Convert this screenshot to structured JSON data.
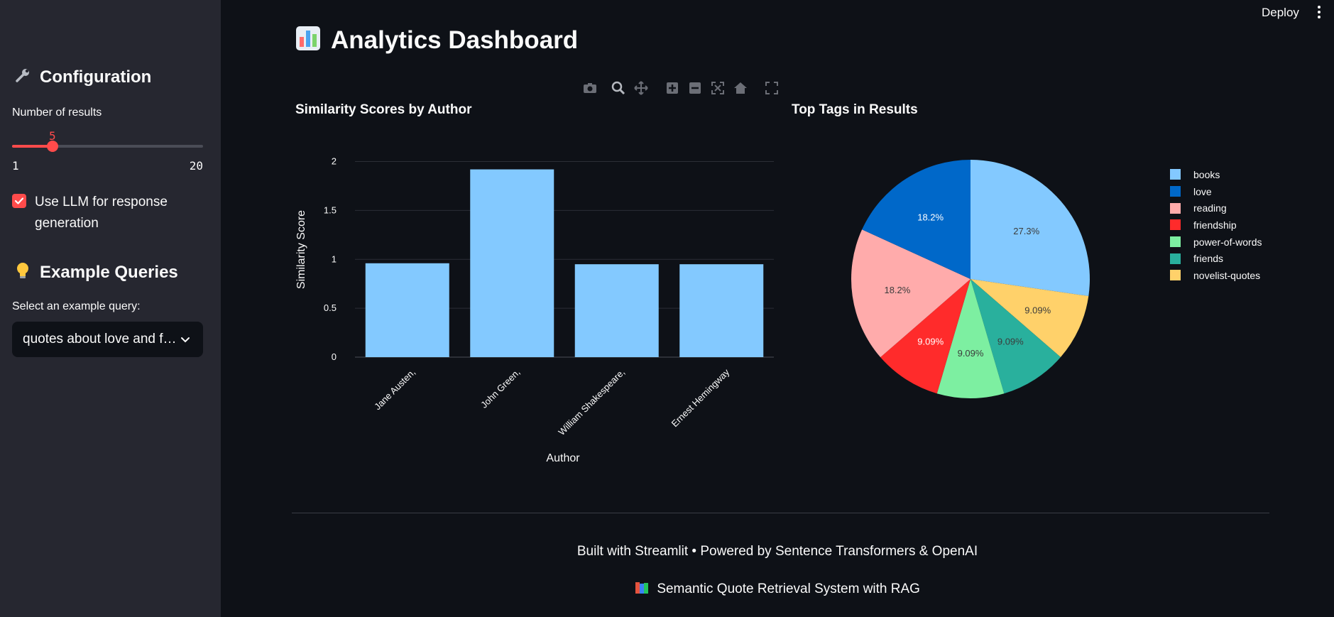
{
  "header": {
    "deploy_label": "Deploy"
  },
  "sidebar": {
    "configuration_title": "Configuration",
    "configuration_icon": "wrench-icon",
    "results_label": "Number of results",
    "results_value": "5",
    "results_min": "1",
    "results_max": "20",
    "llm_checkbox_label": "Use LLM for response generation",
    "llm_checked": true,
    "example_title": "Example Queries",
    "example_icon": "lightbulb-icon",
    "example_select_label": "Select an example query:",
    "example_select_value": "quotes about love and friendship"
  },
  "main": {
    "title": "Analytics Dashboard",
    "title_icon": "bar-chart-icon",
    "bar_chart_title": "Similarity Scores by Author",
    "pie_chart_title": "Top Tags in Results"
  },
  "footer": {
    "built_with": "Built with Streamlit • Powered by Sentence Transformers & OpenAI",
    "system_name": "Semantic Quote Retrieval System with RAG"
  },
  "colors": {
    "accent": "#ff4b4b",
    "bar": "#83c9ff"
  },
  "chart_data": [
    {
      "type": "bar",
      "title": "Similarity Scores by Author",
      "xlabel": "Author",
      "ylabel": "Similarity Score",
      "categories": [
        "Jane Austen,",
        "John Green,",
        "William Shakespeare,",
        "Ernest Hemingway"
      ],
      "values": [
        0.96,
        1.92,
        0.95,
        0.95
      ],
      "ylim": [
        0,
        2.2
      ],
      "yticks": [
        0,
        0.5,
        1,
        1.5,
        2
      ],
      "ytick_labels": [
        "0",
        "0.5",
        "1",
        "1.5",
        "2"
      ],
      "grid": true
    },
    {
      "type": "pie",
      "title": "Top Tags in Results",
      "labels": [
        "books",
        "novelist-quotes",
        "friends",
        "power-of-words",
        "friendship",
        "reading",
        "love"
      ],
      "values": [
        27.3,
        9.09,
        9.09,
        9.09,
        9.09,
        18.2,
        18.2
      ],
      "value_labels": [
        "27.3%",
        "9.09%",
        "9.09%",
        "9.09%",
        "9.09%",
        "18.2%",
        "18.2%"
      ],
      "colors": [
        "#83c9ff",
        "#ffd16a",
        "#29b09d",
        "#7defa1",
        "#ff2b2b",
        "#ffabab",
        "#0068c9"
      ],
      "label_colors": [
        "#3b3b3b",
        "#3b3b3b",
        "#3b3b3b",
        "#3b3b3b",
        "#ffffff",
        "#3b3b3b",
        "#ffffff"
      ],
      "legend": [
        "books",
        "love",
        "reading",
        "friendship",
        "power-of-words",
        "friends",
        "novelist-quotes"
      ],
      "legend_colors": [
        "#83c9ff",
        "#0068c9",
        "#ffabab",
        "#ff2b2b",
        "#7defa1",
        "#29b09d",
        "#ffd16a"
      ],
      "legend_position": "right"
    }
  ]
}
